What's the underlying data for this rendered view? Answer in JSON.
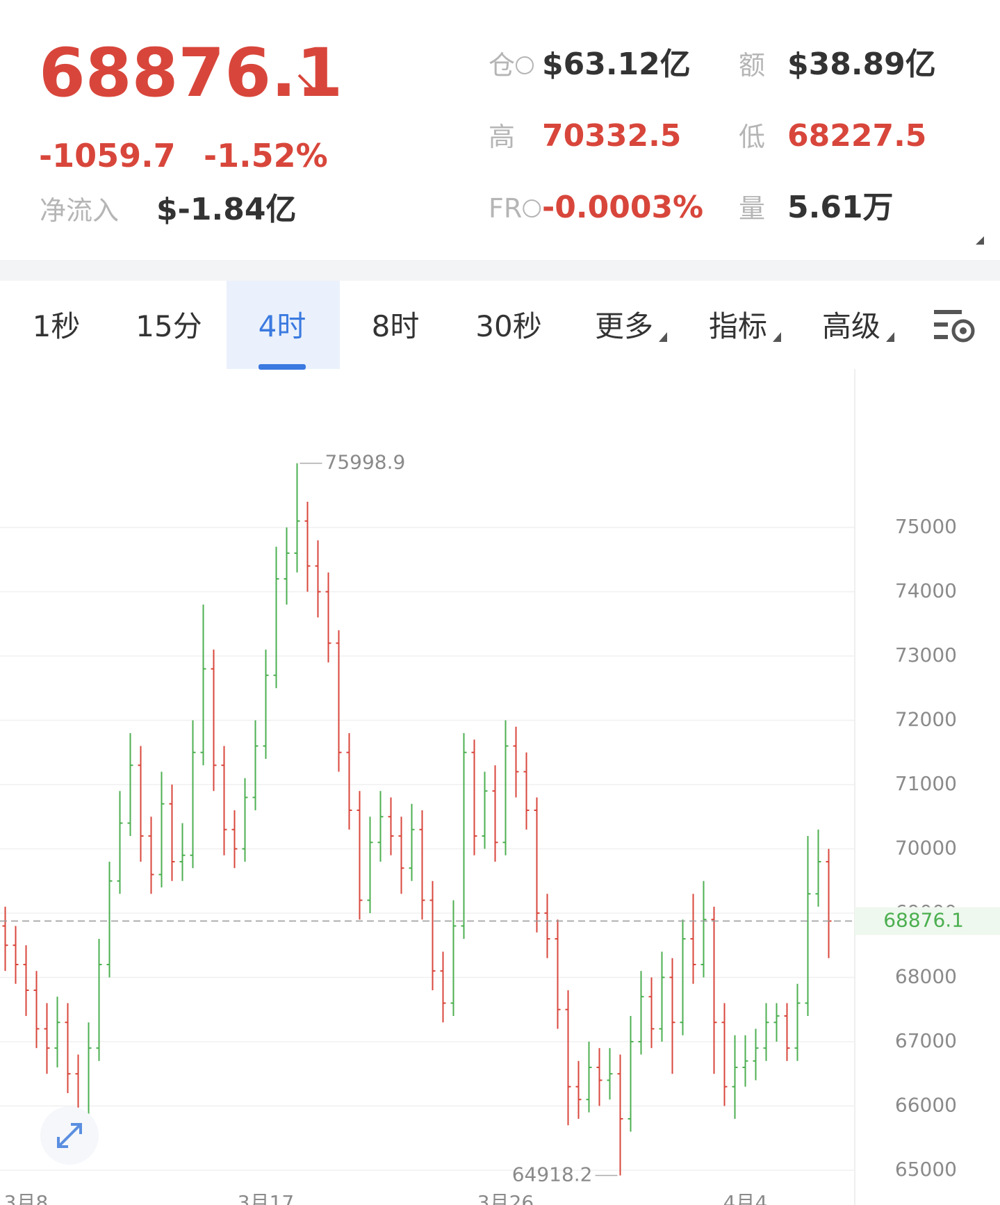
{
  "header": {
    "price": "68876.1",
    "change": "-1059.7",
    "change_pct": "-1.52%",
    "netflow_label": "净流入",
    "netflow_value": "$-1.84亿",
    "stats": [
      {
        "label": "仓",
        "value": "$63.12亿",
        "help": true,
        "value_color": "dark"
      },
      {
        "label": "额",
        "value": "$38.89亿",
        "value_color": "dark"
      },
      {
        "label": "高",
        "value": "70332.5",
        "value_color": "red"
      },
      {
        "label": "低",
        "value": "68227.5",
        "value_color": "red"
      },
      {
        "label": "FR",
        "value": "-0.0003%",
        "help": true,
        "value_color": "red"
      },
      {
        "label": "量",
        "value": "5.61万",
        "value_color": "dark"
      }
    ]
  },
  "tabs": {
    "items": [
      "1秒",
      "15分",
      "4时",
      "8时",
      "30秒",
      "更多",
      "指标",
      "高级"
    ],
    "active": 2,
    "dropdown": [
      5,
      6,
      7
    ]
  },
  "chart_data": {
    "type": "ohlc",
    "up_color": "#4caf50",
    "down_color": "#d8463b",
    "categories": [
      null,
      null,
      "3月8",
      null,
      null,
      null,
      null,
      null,
      null,
      null,
      null,
      null,
      null,
      null,
      null,
      null,
      null,
      null,
      null,
      null,
      null,
      null,
      null,
      null,
      null,
      "3月17",
      null,
      null,
      null,
      null,
      null,
      null,
      null,
      null,
      null,
      null,
      null,
      null,
      null,
      null,
      null,
      null,
      null,
      null,
      null,
      null,
      null,
      null,
      "3月26",
      null,
      null,
      null,
      null,
      null,
      null,
      null,
      null,
      null,
      null,
      null,
      null,
      null,
      null,
      null,
      null,
      null,
      null,
      null,
      null,
      null,
      null,
      "4月4",
      null,
      null,
      null,
      null,
      null,
      null,
      null,
      null
    ],
    "open": [
      68800,
      68500,
      68200,
      67800,
      67200,
      66900,
      67300,
      66500,
      65800,
      66900,
      68200,
      69500,
      70400,
      71300,
      70200,
      69600,
      70700,
      69800,
      69900,
      71500,
      72800,
      71300,
      70300,
      70000,
      70800,
      71600,
      72700,
      74200,
      74600,
      75100,
      74400,
      74000,
      73200,
      71500,
      70600,
      69200,
      70100,
      70500,
      70200,
      69700,
      70300,
      69200,
      68100,
      67600,
      68800,
      71500,
      70200,
      70900,
      70100,
      71600,
      71200,
      70600,
      69000,
      68600,
      67500,
      66300,
      66100,
      66600,
      66400,
      66500,
      65800,
      67000,
      67700,
      67200,
      68000,
      67300,
      68600,
      68200,
      68900,
      67300,
      66300,
      66600,
      66700,
      66900,
      67300,
      67400,
      66900,
      67600,
      69300,
      69800
    ],
    "high": [
      69100,
      68800,
      68500,
      68100,
      67600,
      67700,
      67600,
      66800,
      67300,
      68600,
      69800,
      70900,
      71800,
      71600,
      70500,
      71200,
      71000,
      70400,
      72000,
      73800,
      73100,
      71600,
      70600,
      71100,
      72000,
      73100,
      74700,
      75000,
      75998.9,
      75400,
      74800,
      74300,
      73400,
      71800,
      70900,
      70500,
      70900,
      70800,
      70500,
      70700,
      70600,
      69500,
      68400,
      69200,
      71800,
      71700,
      71200,
      71300,
      72000,
      71900,
      71500,
      70800,
      69300,
      68900,
      67800,
      66700,
      67000,
      66900,
      66900,
      66800,
      67400,
      68100,
      68000,
      68400,
      68300,
      68900,
      69300,
      69500,
      69100,
      67600,
      67100,
      67100,
      67200,
      67600,
      67600,
      67600,
      67900,
      70200,
      70300,
      70000
    ],
    "low": [
      68100,
      67900,
      67400,
      66900,
      66500,
      66600,
      66200,
      65600,
      65700,
      66700,
      68000,
      69300,
      70200,
      69800,
      69300,
      69400,
      69500,
      69500,
      69700,
      71300,
      70900,
      69900,
      69700,
      69800,
      70600,
      71400,
      72500,
      73800,
      74300,
      74000,
      73600,
      72900,
      71200,
      70300,
      68900,
      69000,
      69800,
      69900,
      69300,
      69500,
      68900,
      67800,
      67300,
      67400,
      68600,
      69900,
      70000,
      69800,
      69900,
      70800,
      70300,
      68700,
      68300,
      67200,
      65700,
      65800,
      65900,
      66000,
      66100,
      64918.2,
      65600,
      66800,
      66900,
      67000,
      66500,
      67100,
      67900,
      68000,
      66500,
      66000,
      65800,
      66300,
      66400,
      66700,
      67000,
      66700,
      66700,
      67400,
      69100,
      68300
    ],
    "close": [
      68500,
      68200,
      67800,
      67200,
      66900,
      67300,
      66500,
      65800,
      66900,
      68200,
      69500,
      70400,
      71300,
      70200,
      69600,
      70700,
      69800,
      69900,
      71500,
      72800,
      71300,
      70300,
      70000,
      70800,
      71600,
      72700,
      74200,
      74600,
      75100,
      74400,
      74000,
      73200,
      71500,
      70600,
      69200,
      70100,
      70500,
      70200,
      69700,
      70300,
      69200,
      68100,
      67600,
      68800,
      71500,
      70200,
      70900,
      70100,
      71600,
      71200,
      70600,
      69000,
      68600,
      67500,
      66300,
      66100,
      66600,
      66400,
      66500,
      65800,
      67000,
      67700,
      67200,
      68000,
      67300,
      68600,
      68200,
      68900,
      67300,
      66300,
      66600,
      66700,
      66900,
      67300,
      67400,
      66900,
      67600,
      69300,
      69800,
      68876.1
    ],
    "ylim": [
      64459,
      77465
    ],
    "yticks": [
      65000,
      66000,
      67000,
      68000,
      69000,
      70000,
      71000,
      72000,
      73000,
      74000,
      75000
    ],
    "grid": true,
    "max_label_index": 28,
    "min_label_index": 59,
    "last_price_line": true
  }
}
